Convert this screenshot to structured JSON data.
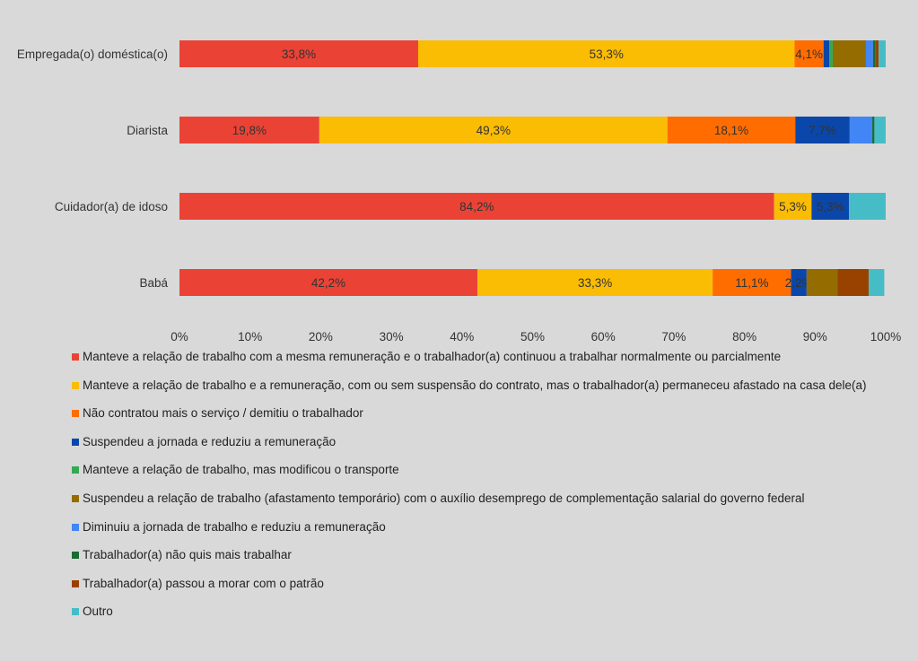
{
  "chart_data": {
    "type": "bar",
    "orientation": "horizontal",
    "stacked": true,
    "categories": [
      "Empregada(o) doméstica(o)",
      "Diarista",
      "Cuidador(a) de idoso",
      "Babá"
    ],
    "xlim": [
      0,
      100
    ],
    "x_ticks": [
      "0%",
      "10%",
      "20%",
      "30%",
      "40%",
      "50%",
      "60%",
      "70%",
      "80%",
      "90%",
      "100%"
    ],
    "grid": false,
    "legend_position": "bottom",
    "series": [
      {
        "name": "Manteve a relação de trabalho com a mesma remuneração e o trabalhador(a) continuou a trabalhar normalmente ou parcialmente",
        "color": "#EA4335",
        "values": [
          33.8,
          19.8,
          84.2,
          42.2
        ],
        "labels": [
          "33,8%",
          "19,8%",
          "84,2%",
          "42,2%"
        ]
      },
      {
        "name": "Manteve a relação de trabalho e a remuneração, com ou sem suspensão do contrato, mas o trabalhador(a) permaneceu afastado na casa dele(a)",
        "color": "#FBBC04",
        "values": [
          53.3,
          49.3,
          5.3,
          33.3
        ],
        "labels": [
          "53,3%",
          "49,3%",
          "5,3%",
          "33,3%"
        ]
      },
      {
        "name": "Não contratou mais o serviço / demitiu o trabalhador",
        "color": "#FF6D01",
        "values": [
          4.1,
          18.1,
          0,
          11.1
        ],
        "labels": [
          "4,1%",
          "18,1%",
          null,
          "11,1%"
        ]
      },
      {
        "name": "Suspendeu a jornada e reduziu a remuneração",
        "color": "#0B47AA",
        "values": [
          0.8,
          7.7,
          5.3,
          2.2
        ],
        "labels": [
          null,
          "7,7%",
          "5,3%",
          "2,2%"
        ]
      },
      {
        "name": "Manteve a relação de trabalho, mas modificou o transporte",
        "color": "#34A853",
        "values": [
          0.5,
          0,
          0,
          0
        ],
        "labels": [
          null,
          null,
          null,
          null
        ]
      },
      {
        "name": "Suspendeu a relação de trabalho (afastamento temporário) com o auxílio desemprego de complementação salarial do governo federal",
        "color": "#946C00",
        "values": [
          4.7,
          0,
          0,
          4.4
        ],
        "labels": [
          null,
          null,
          null,
          null
        ]
      },
      {
        "name": "Diminuiu a jornada de trabalho e reduziu a remuneração",
        "color": "#4285F4",
        "values": [
          1.0,
          3.2,
          0,
          0
        ],
        "labels": [
          null,
          null,
          null,
          null
        ]
      },
      {
        "name": "Trabalhador(a) não quis mais trabalhar",
        "color": "#1B6B34",
        "values": [
          0.3,
          0.3,
          0,
          0
        ],
        "labels": [
          null,
          null,
          null,
          null
        ]
      },
      {
        "name": "Trabalhador(a) passou a morar com o patrão",
        "color": "#994200",
        "values": [
          0.5,
          0,
          0,
          4.4
        ],
        "labels": [
          null,
          null,
          null,
          null
        ]
      },
      {
        "name": "Outro",
        "color": "#46BDC6",
        "values": [
          1.0,
          1.6,
          5.2,
          2.2
        ],
        "labels": [
          null,
          null,
          null,
          null
        ]
      }
    ]
  }
}
